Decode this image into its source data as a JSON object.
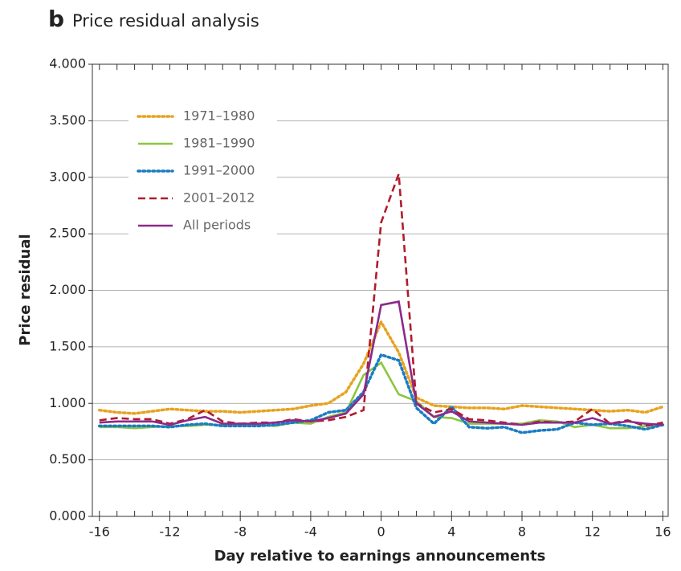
{
  "chart_data": {
    "type": "line",
    "panel_label": "b",
    "title": "Price residual analysis",
    "x_label": "Day relative to earnings announcements",
    "y_label": "Price residual",
    "x": [
      -16,
      -15,
      -14,
      -13,
      -12,
      -11,
      -10,
      -9,
      -8,
      -7,
      -6,
      -5,
      -4,
      -3,
      -2,
      -1,
      0,
      1,
      2,
      3,
      4,
      5,
      6,
      7,
      8,
      9,
      10,
      11,
      12,
      13,
      14,
      15,
      16
    ],
    "series": [
      {
        "name": "1971–1980",
        "color": "#e8a220",
        "style": "dotted",
        "values": [
          0.94,
          0.92,
          0.91,
          0.93,
          0.95,
          0.94,
          0.93,
          0.93,
          0.92,
          0.93,
          0.94,
          0.95,
          0.98,
          1.0,
          1.1,
          1.35,
          1.72,
          1.45,
          1.05,
          0.98,
          0.97,
          0.96,
          0.96,
          0.95,
          0.98,
          0.97,
          0.96,
          0.95,
          0.94,
          0.93,
          0.94,
          0.92,
          0.97
        ]
      },
      {
        "name": "1981–1990",
        "color": "#8cc63f",
        "style": "solid",
        "values": [
          0.79,
          0.79,
          0.78,
          0.79,
          0.8,
          0.8,
          0.81,
          0.81,
          0.81,
          0.81,
          0.8,
          0.83,
          0.82,
          0.88,
          0.92,
          1.25,
          1.36,
          1.08,
          1.02,
          0.88,
          0.87,
          0.82,
          0.82,
          0.82,
          0.82,
          0.85,
          0.84,
          0.79,
          0.81,
          0.78,
          0.78,
          0.8,
          0.81
        ]
      },
      {
        "name": "1991–2000",
        "color": "#1a7cc1",
        "style": "dotted",
        "values": [
          0.8,
          0.8,
          0.8,
          0.8,
          0.79,
          0.81,
          0.82,
          0.8,
          0.8,
          0.8,
          0.81,
          0.83,
          0.85,
          0.92,
          0.94,
          1.1,
          1.43,
          1.38,
          0.96,
          0.82,
          0.97,
          0.79,
          0.78,
          0.79,
          0.74,
          0.76,
          0.77,
          0.83,
          0.81,
          0.82,
          0.8,
          0.77,
          0.81
        ]
      },
      {
        "name": "2001–2012",
        "color": "#b01c2e",
        "style": "dashed",
        "values": [
          0.85,
          0.87,
          0.86,
          0.86,
          0.82,
          0.86,
          0.94,
          0.84,
          0.82,
          0.83,
          0.83,
          0.86,
          0.84,
          0.85,
          0.88,
          0.94,
          2.6,
          3.03,
          1.0,
          0.92,
          0.95,
          0.86,
          0.85,
          0.83,
          0.81,
          0.84,
          0.83,
          0.84,
          0.95,
          0.82,
          0.85,
          0.8,
          0.83
        ]
      },
      {
        "name": "All periods",
        "color": "#8b2a8b",
        "style": "solid",
        "values": [
          0.83,
          0.84,
          0.84,
          0.84,
          0.81,
          0.85,
          0.88,
          0.82,
          0.82,
          0.82,
          0.83,
          0.85,
          0.84,
          0.87,
          0.91,
          1.08,
          1.87,
          1.9,
          1.0,
          0.88,
          0.93,
          0.84,
          0.83,
          0.82,
          0.81,
          0.83,
          0.83,
          0.83,
          0.87,
          0.82,
          0.84,
          0.82,
          0.81
        ]
      }
    ],
    "xlim": [
      -16.4,
      16.3
    ],
    "xticks": [
      -16,
      -12,
      -8,
      -4,
      0,
      4,
      8,
      12,
      16
    ],
    "xminorticks": [
      -16,
      -15,
      -14,
      -13,
      -12,
      -11,
      -10,
      -9,
      -8,
      -7,
      -6,
      -5,
      -4,
      -3,
      -2,
      -1,
      0,
      1,
      2,
      3,
      4,
      5,
      6,
      7,
      8,
      9,
      10,
      11,
      12,
      13,
      14,
      15,
      16
    ],
    "ylim": [
      0,
      4
    ],
    "yticks": [
      {
        "value": 0,
        "label": "0.000"
      },
      {
        "value": 0.5,
        "label": "0.500"
      },
      {
        "value": 1,
        "label": "1.000"
      },
      {
        "value": 1.5,
        "label": "1.500"
      },
      {
        "value": 2,
        "label": "2.000"
      },
      {
        "value": 2.5,
        "label": "2.500"
      },
      {
        "value": 3,
        "label": "3.000"
      },
      {
        "value": 3.5,
        "label": "3.500"
      },
      {
        "value": 4,
        "label": "4.000"
      }
    ],
    "grid": true,
    "legend": "upper left"
  }
}
